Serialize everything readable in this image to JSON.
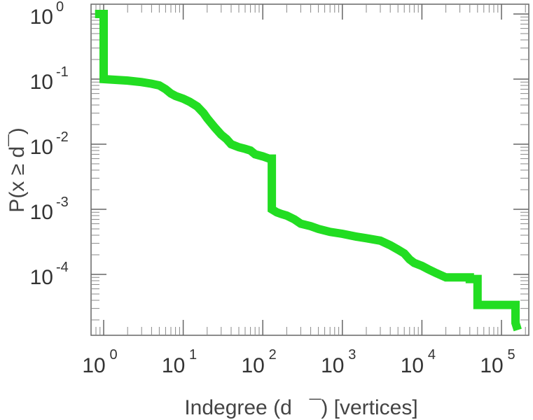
{
  "chart_data": {
    "type": "line",
    "xlabel": "Indegree (d   ¯) [vertices]",
    "ylabel": "P(x ≥ d¯)",
    "xscale": "log",
    "yscale": "log",
    "xlim": [
      0.7,
      220000
    ],
    "ylim": [
      1.3e-05,
      1.0
    ],
    "grid": false,
    "legend": "none",
    "color": "#22dd22",
    "x_ticks": [
      {
        "base": "10",
        "exp": "0",
        "value": 1
      },
      {
        "base": "10",
        "exp": "1",
        "value": 10
      },
      {
        "base": "10",
        "exp": "2",
        "value": 100
      },
      {
        "base": "10",
        "exp": "3",
        "value": 1000
      },
      {
        "base": "10",
        "exp": "4",
        "value": 10000
      },
      {
        "base": "10",
        "exp": "5",
        "value": 100000
      }
    ],
    "y_ticks": [
      {
        "base": "10",
        "exp": "0",
        "value": 1
      },
      {
        "base": "10",
        "exp": "-1",
        "value": 0.1
      },
      {
        "base": "10",
        "exp": "-2",
        "value": 0.01
      },
      {
        "base": "10",
        "exp": "-3",
        "value": 0.001
      },
      {
        "base": "10",
        "exp": "-4",
        "value": 0.0001
      }
    ],
    "series": [
      {
        "x": [
          0.78,
          1,
          1,
          2,
          3,
          4,
          5,
          6,
          7,
          8,
          10,
          12,
          15,
          18,
          20,
          25,
          30,
          35,
          40,
          50,
          60,
          70,
          80,
          100,
          120,
          130,
          130,
          150,
          170,
          200,
          250,
          300,
          400,
          500,
          700,
          1000,
          1500,
          2000,
          3000,
          4000,
          5000,
          6000,
          7000,
          8000,
          10000,
          12000,
          15000,
          20000,
          40000,
          40000,
          50000,
          50000,
          150000,
          150000,
          160000
        ],
        "y": [
          1.0,
          1.0,
          0.1,
          0.095,
          0.09,
          0.085,
          0.08,
          0.07,
          0.06,
          0.055,
          0.05,
          0.045,
          0.038,
          0.03,
          0.025,
          0.018,
          0.014,
          0.012,
          0.01,
          0.009,
          0.0085,
          0.008,
          0.007,
          0.0065,
          0.006,
          0.006,
          0.001,
          0.0009,
          0.00085,
          0.0008,
          0.0007,
          0.0006,
          0.00055,
          0.0005,
          0.00045,
          0.00042,
          0.00038,
          0.00036,
          0.00033,
          0.00028,
          0.00024,
          0.00021,
          0.00017,
          0.00015,
          0.000135,
          0.00012,
          0.000105,
          9e-05,
          9e-05,
          8.5e-05,
          8.5e-05,
          3.4e-05,
          3.4e-05,
          1.8e-05,
          1.4e-05
        ]
      }
    ]
  }
}
